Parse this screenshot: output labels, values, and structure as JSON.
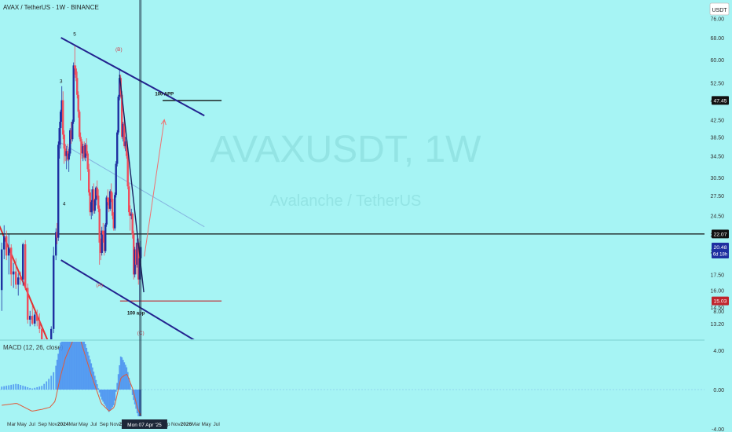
{
  "header": {
    "symbol_line": "AVAX / TetherUS · 1W · BINANCE",
    "currency_badge": "USDT"
  },
  "watermark": {
    "ticker": "AVAXUSDT, 1W",
    "name": "Avalanche / TetherUS"
  },
  "colors": {
    "background": "#a6f4f4",
    "up_candle": "#1e2fa0",
    "down_candle": "#ef4d5c",
    "channel_line": "#23238f",
    "trend_line_red": "#e03030",
    "level_line": "#111111",
    "support_line": "#c0242c",
    "projection_arrow": "#f07070",
    "macd_line": "#e05a3a",
    "histogram": "#4a8ff0"
  },
  "chart_data": [
    {
      "type": "candlestick",
      "title": "AVAX / TetherUS · 1W · BINANCE",
      "y_scale": "log",
      "y_ticks": [
        13.2,
        14.5,
        16.0,
        17.5,
        20.0,
        22.0,
        24.5,
        27.5,
        30.5,
        34.5,
        38.5,
        42.5,
        47.5,
        52.5,
        60.0,
        68.0,
        76.0
      ],
      "y_tick_labels": [
        "13.20",
        "14.50",
        "16.00",
        "17.50",
        "20.00",
        "22.00",
        "24.50",
        "27.50",
        "30.50",
        "34.50",
        "38.50",
        "42.50",
        "47.50",
        "52.50",
        "60.00",
        "68.00",
        "76.00"
      ],
      "x_tick_labels": [
        "Mar",
        "May",
        "Jul",
        "Sep",
        "Nov",
        "2024",
        "Mar",
        "May",
        "Jul",
        "Sep",
        "Nov",
        "2025",
        "Mar",
        "May",
        "Jul",
        "Sep",
        "Nov",
        "2026",
        "Mar",
        "May",
        "Jul"
      ],
      "price_labels": [
        {
          "value": 47.45,
          "text": "47.45"
        },
        {
          "value": 22.07,
          "text": "22.07"
        },
        {
          "value": 20.48,
          "text": "20.48",
          "sub": "6d 18h"
        },
        {
          "value": 15.03,
          "text": "15.03"
        }
      ],
      "wave_labels": [
        {
          "text": "5",
          "date": "2024-03-10",
          "price": 68.8
        },
        {
          "text": "3",
          "date": "2023-12-20",
          "price": 52.5
        },
        {
          "text": "4",
          "date": "2024-01-08",
          "price": 26.0
        },
        {
          "text": "(B)",
          "date": "2024-11-28",
          "price": 63.0
        },
        {
          "text": "(A)",
          "date": "2024-08-05",
          "price": 16.3
        },
        {
          "text": "(C)",
          "date": "2025-04-07",
          "price": 12.4
        }
      ],
      "annotations": [
        {
          "text": "100 APP",
          "date": "2025-08-25",
          "price": 48.8
        },
        {
          "text": "100 app",
          "date": "2025-03-10",
          "price": 13.9
        }
      ],
      "crosshair_label": "Mon 07 Apr '25",
      "drawings": {
        "upper_channel": [
          {
            "date": "2023-12-20",
            "price": 68.0
          },
          {
            "date": "2026-04-20",
            "price": 43.5
          }
        ],
        "lower_channel": [
          {
            "date": "2023-12-20",
            "price": 19.0
          },
          {
            "date": "2026-04-20",
            "price": 11.6
          }
        ],
        "median_line": [
          {
            "date": "2023-12-20",
            "price": 37.2
          },
          {
            "date": "2026-04-20",
            "price": 23.0
          }
        ],
        "downtrend_2023": [
          {
            "date": "2022-11-15",
            "price": 25.0
          },
          {
            "date": "2023-10-20",
            "price": 11.5
          }
        ],
        "wave_c_line": [
          {
            "date": "2024-12-02",
            "price": 55.0
          },
          {
            "date": "2025-04-25",
            "price": 15.8
          }
        ],
        "resistance": 22.07,
        "support": {
          "price": 15.03,
          "from": "2024-12-05",
          "to": "2026-07-31"
        },
        "target_line": {
          "price": 47.45,
          "from": "2025-08-15",
          "to": "2026-07-31"
        },
        "projection": [
          {
            "date": "2025-04-28",
            "price": 19.4
          },
          {
            "date": "2025-08-25",
            "price": 42.5
          }
        ]
      },
      "candles": [
        [
          "2023-01-02",
          16.0,
          21.0,
          14.2,
          20.2
        ],
        [
          "2023-01-16",
          20.2,
          23.2,
          19.1,
          21.8
        ],
        [
          "2023-01-30",
          21.8,
          22.5,
          19.0,
          19.5
        ],
        [
          "2023-02-13",
          19.5,
          22.0,
          17.5,
          20.4
        ],
        [
          "2023-02-27",
          20.4,
          20.8,
          16.4,
          17.5
        ],
        [
          "2023-03-13",
          17.5,
          18.7,
          16.2,
          17.8
        ],
        [
          "2023-03-27",
          17.8,
          19.2,
          16.1,
          16.5
        ],
        [
          "2023-04-10",
          16.5,
          17.6,
          15.5,
          17.2
        ],
        [
          "2023-04-24",
          17.2,
          17.8,
          16.5,
          17.0
        ],
        [
          "2023-05-08",
          17.0,
          21.0,
          16.4,
          20.8
        ],
        [
          "2023-05-22",
          20.8,
          21.3,
          16.0,
          16.2
        ],
        [
          "2023-06-05",
          16.2,
          16.6,
          13.2,
          13.5
        ],
        [
          "2023-06-19",
          13.5,
          14.2,
          13.0,
          13.8
        ],
        [
          "2023-07-03",
          13.8,
          14.6,
          13.1,
          13.2
        ],
        [
          "2023-07-17",
          13.2,
          14.1,
          13.0,
          13.9
        ],
        [
          "2023-07-31",
          13.9,
          14.3,
          13.0,
          13.4
        ],
        [
          "2023-08-14",
          13.4,
          14.0,
          12.5,
          12.8
        ],
        [
          "2023-08-28",
          12.8,
          13.0,
          11.8,
          11.9
        ],
        [
          "2023-09-11",
          11.9,
          12.1,
          11.0,
          11.5
        ],
        [
          "2023-09-25",
          11.5,
          12.0,
          10.5,
          10.8
        ],
        [
          "2023-10-09",
          10.8,
          11.1,
          10.2,
          10.4
        ],
        [
          "2023-10-23",
          10.4,
          13.0,
          10.2,
          12.8
        ],
        [
          "2023-11-06",
          12.8,
          20.5,
          12.5,
          19.5
        ],
        [
          "2023-11-20",
          19.5,
          22.8,
          19.0,
          22.3
        ],
        [
          "2023-11-27",
          22.3,
          23.5,
          20.8,
          21.6
        ],
        [
          "2023-12-04",
          21.6,
          37.5,
          21.2,
          36.8
        ],
        [
          "2023-12-11",
          36.8,
          42.0,
          34.0,
          40.5
        ],
        [
          "2023-12-18",
          40.5,
          45.0,
          36.0,
          44.5
        ],
        [
          "2023-12-25",
          44.5,
          51.5,
          42.0,
          47.5
        ],
        [
          "2024-01-01",
          47.5,
          50.0,
          38.0,
          39.0
        ],
        [
          "2024-01-08",
          39.0,
          40.0,
          33.0,
          36.0
        ],
        [
          "2024-01-15",
          36.0,
          37.0,
          33.5,
          34.5
        ],
        [
          "2024-01-22",
          34.5,
          36.5,
          32.0,
          35.5
        ],
        [
          "2024-01-29",
          35.5,
          37.0,
          33.5,
          33.8
        ],
        [
          "2024-02-05",
          33.8,
          36.0,
          31.5,
          35.0
        ],
        [
          "2024-02-12",
          35.0,
          40.5,
          34.5,
          40.0
        ],
        [
          "2024-02-19",
          40.0,
          42.0,
          37.0,
          38.0
        ],
        [
          "2024-02-26",
          38.0,
          42.5,
          37.5,
          42.0
        ],
        [
          "2024-03-04",
          42.0,
          59.0,
          41.5,
          58.0
        ],
        [
          "2024-03-11",
          58.0,
          65.0,
          55.0,
          57.0
        ],
        [
          "2024-03-18",
          57.0,
          58.0,
          53.0,
          54.0
        ],
        [
          "2024-03-25",
          54.0,
          56.0,
          48.0,
          49.0
        ],
        [
          "2024-04-01",
          49.0,
          50.0,
          43.0,
          44.5
        ],
        [
          "2024-04-08",
          44.5,
          45.0,
          38.0,
          38.5
        ],
        [
          "2024-04-15",
          38.5,
          39.5,
          30.0,
          37.5
        ],
        [
          "2024-04-22",
          37.5,
          38.0,
          34.0,
          35.0
        ],
        [
          "2024-04-29",
          35.0,
          37.0,
          33.5,
          36.5
        ],
        [
          "2024-05-06",
          36.5,
          37.5,
          33.8,
          34.2
        ],
        [
          "2024-05-13",
          34.2,
          37.2,
          33.5,
          36.8
        ],
        [
          "2024-05-20",
          36.8,
          38.2,
          34.5,
          35.0
        ],
        [
          "2024-05-27",
          35.0,
          35.5,
          31.5,
          32.0
        ],
        [
          "2024-06-03",
          32.0,
          33.0,
          27.5,
          28.0
        ],
        [
          "2024-06-10",
          28.0,
          28.5,
          24.5,
          25.0
        ],
        [
          "2024-06-17",
          25.0,
          26.8,
          24.0,
          26.5
        ],
        [
          "2024-06-24",
          26.5,
          29.0,
          24.5,
          28.5
        ],
        [
          "2024-07-01",
          28.5,
          29.5,
          24.8,
          25.2
        ],
        [
          "2024-07-08",
          25.2,
          27.0,
          24.8,
          26.8
        ],
        [
          "2024-07-15",
          26.8,
          29.0,
          26.0,
          28.8
        ],
        [
          "2024-07-22",
          28.8,
          30.0,
          27.0,
          27.5
        ],
        [
          "2024-07-29",
          27.5,
          28.5,
          25.0,
          25.5
        ],
        [
          "2024-08-05",
          25.5,
          26.0,
          18.5,
          21.0
        ],
        [
          "2024-08-12",
          21.0,
          21.5,
          19.0,
          19.8
        ],
        [
          "2024-08-19",
          19.8,
          23.0,
          19.5,
          22.5
        ],
        [
          "2024-08-26",
          22.5,
          23.5,
          21.0,
          22.0
        ],
        [
          "2024-09-02",
          22.0,
          22.5,
          19.5,
          20.0
        ],
        [
          "2024-09-09",
          20.0,
          23.5,
          19.8,
          23.3
        ],
        [
          "2024-09-16",
          23.3,
          27.5,
          23.0,
          27.2
        ],
        [
          "2024-09-23",
          27.2,
          28.5,
          26.0,
          26.5
        ],
        [
          "2024-09-30",
          26.5,
          27.2,
          25.0,
          25.5
        ],
        [
          "2024-10-07",
          25.5,
          28.5,
          25.2,
          28.2
        ],
        [
          "2024-10-14",
          28.2,
          29.5,
          26.5,
          27.0
        ],
        [
          "2024-10-21",
          27.0,
          28.0,
          24.0,
          24.5
        ],
        [
          "2024-10-28",
          24.5,
          25.0,
          22.5,
          22.8
        ],
        [
          "2024-11-04",
          22.8,
          28.0,
          22.5,
          27.6
        ],
        [
          "2024-11-11",
          27.6,
          33.5,
          27.2,
          33.0
        ],
        [
          "2024-11-18",
          33.0,
          40.0,
          32.5,
          39.5
        ],
        [
          "2024-11-25",
          39.5,
          49.0,
          39.0,
          48.5
        ],
        [
          "2024-12-02",
          48.5,
          57.0,
          47.5,
          54.0
        ],
        [
          "2024-12-09",
          54.0,
          55.0,
          48.0,
          49.0
        ],
        [
          "2024-12-16",
          49.0,
          50.0,
          38.0,
          38.5
        ],
        [
          "2024-12-23",
          38.5,
          42.0,
          37.5,
          41.5
        ],
        [
          "2024-12-30",
          41.5,
          42.5,
          36.0,
          36.5
        ],
        [
          "2025-01-06",
          36.5,
          38.5,
          35.5,
          37.5
        ],
        [
          "2025-01-13",
          37.5,
          38.0,
          34.0,
          34.5
        ],
        [
          "2025-01-20",
          34.5,
          35.0,
          28.5,
          29.0
        ],
        [
          "2025-01-27",
          29.0,
          29.5,
          24.5,
          25.0
        ],
        [
          "2025-02-03",
          25.0,
          26.0,
          22.5,
          24.5
        ],
        [
          "2025-02-10",
          24.5,
          25.5,
          24.0,
          24.8
        ],
        [
          "2025-02-17",
          24.8,
          25.0,
          21.5,
          22.0
        ],
        [
          "2025-02-24",
          22.0,
          22.5,
          17.0,
          17.5
        ],
        [
          "2025-03-03",
          17.5,
          20.5,
          17.2,
          20.2
        ],
        [
          "2025-03-10",
          20.2,
          21.0,
          17.5,
          18.5
        ],
        [
          "2025-03-17",
          18.5,
          21.5,
          18.2,
          21.0
        ],
        [
          "2025-03-24",
          21.0,
          21.5,
          16.5,
          17.0
        ],
        [
          "2025-03-31",
          17.0,
          19.5,
          14.6,
          19.2
        ],
        [
          "2025-04-07",
          19.2,
          21.2,
          18.8,
          20.48
        ]
      ]
    },
    {
      "type": "line",
      "title": "MACD (12, 26, close)",
      "y_ticks": [
        8.0,
        4.0,
        0.0,
        -4.0
      ],
      "y_tick_labels": [
        "8.00",
        "4.00",
        "0.00",
        "-4.00"
      ],
      "series": [
        {
          "name": "MACD",
          "x": [
            "2023-01-02",
            "2023-04-01",
            "2023-07-01",
            "2023-09-01",
            "2023-10-15",
            "2023-11-15",
            "2023-12-15",
            "2024-01-15",
            "2024-03-15",
            "2024-04-15",
            "2024-06-15",
            "2024-08-15",
            "2024-10-01",
            "2024-11-01",
            "2024-12-10",
            "2025-01-15",
            "2025-02-20",
            "2025-03-20",
            "2025-04-07"
          ],
          "values": [
            -1.6,
            -1.4,
            -2.2,
            -2.0,
            -1.8,
            -1.2,
            1.2,
            3.2,
            5.6,
            5.0,
            1.6,
            -1.4,
            -2.2,
            -1.8,
            1.2,
            1.6,
            0.0,
            -2.0,
            -2.6
          ]
        }
      ],
      "histogram": {
        "x": [
          "2023-01-02",
          "2023-04-01",
          "2023-07-01",
          "2023-09-01",
          "2023-10-15",
          "2023-11-15",
          "2023-12-15",
          "2024-01-15",
          "2024-03-15",
          "2024-04-15",
          "2024-06-15",
          "2024-08-15",
          "2024-10-01",
          "2024-11-01",
          "2024-12-10",
          "2025-01-15",
          "2025-02-20",
          "2025-03-20",
          "2025-04-07"
        ],
        "values": [
          0.3,
          0.6,
          0.1,
          0.4,
          1.2,
          2.0,
          4.6,
          6.6,
          8.0,
          6.2,
          2.8,
          -0.9,
          -2.3,
          -1.5,
          3.5,
          2.2,
          -0.8,
          -2.6,
          -4.6
        ]
      }
    }
  ]
}
